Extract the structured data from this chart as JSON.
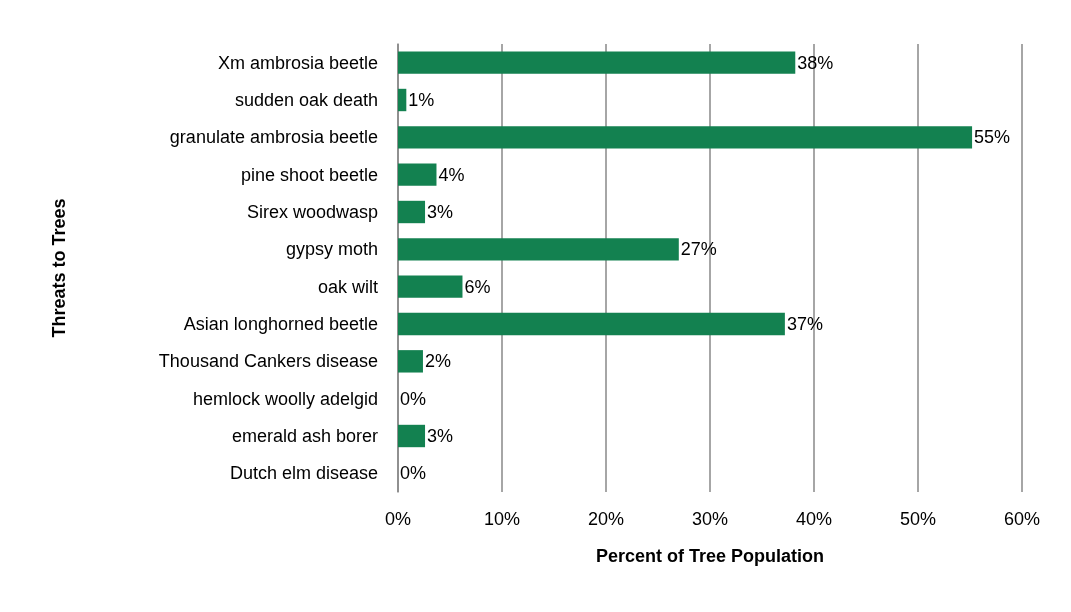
{
  "chart_data": {
    "type": "bar",
    "orientation": "horizontal",
    "xlabel": "Percent of Tree Population",
    "ylabel": "Threats to Trees",
    "categories": [
      "Xm ambrosia beetle",
      "sudden oak death",
      "granulate ambrosia beetle",
      "pine shoot beetle",
      "Sirex woodwasp",
      "gypsy moth",
      "oak wilt",
      "Asian longhorned beetle",
      "Thousand Cankers disease",
      "hemlock woolly adelgid",
      "emerald ash borer",
      "Dutch elm disease"
    ],
    "values": [
      38.2,
      0.8,
      55.2,
      3.7,
      2.6,
      27.0,
      6.2,
      37.2,
      2.4,
      0,
      2.6,
      0
    ],
    "value_labels": [
      "38%",
      "1%",
      "55%",
      "4%",
      "3%",
      "27%",
      "6%",
      "37%",
      "2%",
      "0%",
      "3%",
      "0%"
    ],
    "color": "#138150",
    "xlim": [
      0,
      60
    ],
    "xticks": [
      {
        "value": 0,
        "label": "0%"
      },
      {
        "value": 10,
        "label": "10%"
      },
      {
        "value": 20,
        "label": "20%"
      },
      {
        "value": 30,
        "label": "30%"
      },
      {
        "value": 40,
        "label": "40%"
      },
      {
        "value": 50,
        "label": "50%"
      },
      {
        "value": 60,
        "label": "60%"
      }
    ],
    "grid": "x"
  }
}
